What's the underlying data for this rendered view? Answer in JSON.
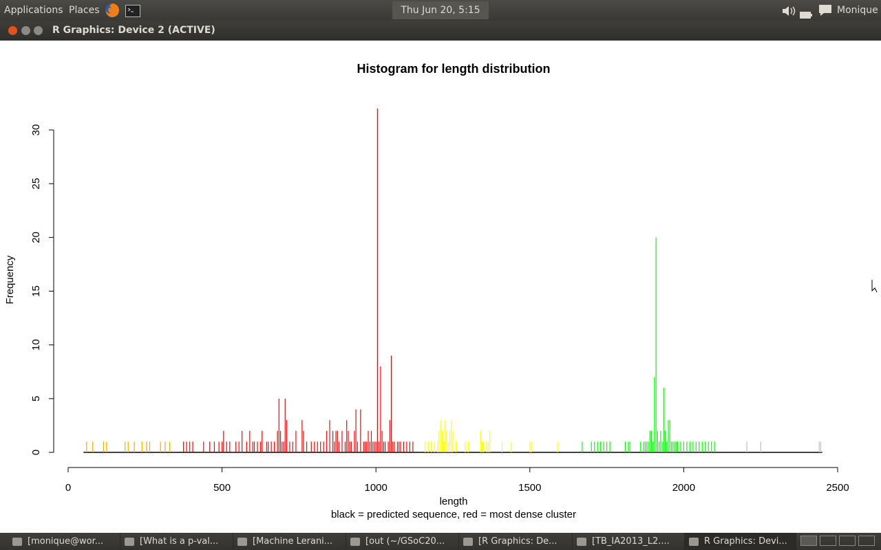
{
  "top_panel": {
    "applications_label": "Applications",
    "places_label": "Places",
    "clock": "Thu Jun 20,  5:15 PM",
    "user_name": "Monique"
  },
  "window": {
    "title": "R Graphics: Device 2 (ACTIVE)"
  },
  "taskbar": {
    "items": [
      {
        "label": "[monique@wor...",
        "icon": "terminal-icon"
      },
      {
        "label": "[What is a p-val...",
        "icon": "firefox-icon"
      },
      {
        "label": "[Machine Lerani...",
        "icon": "folder-icon"
      },
      {
        "label": "[out (~/GSoC20...",
        "icon": "text-editor-icon"
      },
      {
        "label": "[R Graphics: De...",
        "icon": "window-icon"
      },
      {
        "label": "[TB_IA2013_L2....",
        "icon": "document-icon"
      },
      {
        "label": "R Graphics: Devi...",
        "icon": "window-icon",
        "active": true
      }
    ]
  },
  "colors": {
    "orange": "#FFA500",
    "red": "#FF0000",
    "yellow": "#FFFF00",
    "green": "#00FF00",
    "gray": "#BEBEBE",
    "black": "#000000"
  },
  "chart_data": {
    "type": "bar",
    "title": "Histogram for length distribution",
    "xlabel": "length",
    "ylabel": "Frequency",
    "subtitle": "black = predicted sequence, red = most dense cluster",
    "xlim": [
      0,
      2500
    ],
    "ylim": [
      0,
      30
    ],
    "x_ticks": [
      "0",
      "500",
      "1000",
      "1500",
      "2000",
      "2500"
    ],
    "y_ticks": [
      "0",
      "5",
      "10",
      "15",
      "20",
      "25",
      "30"
    ],
    "baseline_range": [
      50,
      2450
    ],
    "series": [
      {
        "color": "orange",
        "x": [
          60,
          80,
          115,
          125,
          185,
          195,
          215,
          240,
          255,
          265,
          300,
          315,
          330
        ],
        "values": [
          1,
          1,
          1,
          1,
          1,
          1,
          1,
          1,
          1,
          1,
          1,
          1,
          1
        ]
      },
      {
        "color": "red",
        "x": [
          375,
          385,
          395,
          405,
          440,
          460,
          475,
          490,
          500,
          505,
          515,
          525,
          545,
          555,
          565,
          580,
          590,
          600,
          605,
          615,
          625,
          630,
          645,
          650,
          660,
          670,
          680,
          685,
          690,
          695,
          700,
          705,
          710,
          720,
          730,
          740,
          760,
          765,
          775,
          790,
          800,
          810,
          820,
          830,
          840,
          850,
          860,
          865,
          870,
          875,
          880,
          890,
          900,
          905,
          910,
          915,
          920,
          930,
          935,
          940,
          950,
          960,
          965,
          970,
          975,
          980,
          985,
          990,
          995,
          1000,
          1005,
          1010,
          1015,
          1020,
          1025,
          1030,
          1040,
          1045,
          1050,
          1055,
          1060,
          1070,
          1075,
          1080,
          1090,
          1100,
          1110,
          1120
        ],
        "values": [
          1,
          1,
          1,
          1,
          1,
          1,
          1,
          1,
          1,
          2,
          1,
          1,
          1,
          1,
          2,
          1,
          2,
          1,
          1,
          1,
          1,
          2,
          1,
          1,
          1,
          1,
          2,
          5,
          2,
          1,
          1,
          5,
          3,
          1,
          1,
          2,
          3,
          2,
          1,
          1,
          1,
          1,
          1,
          1,
          2,
          3,
          2,
          1,
          2,
          2,
          1,
          2,
          1,
          3,
          2,
          1,
          1,
          2,
          4,
          1,
          4,
          1,
          1,
          1,
          2,
          1,
          2,
          1,
          1,
          1,
          32,
          1,
          8,
          2,
          1,
          1,
          1,
          3,
          9,
          1,
          1,
          1,
          1,
          1,
          1,
          1,
          1,
          1
        ]
      },
      {
        "color": "yellow",
        "x": [
          1160,
          1170,
          1180,
          1190,
          1200,
          1205,
          1210,
          1215,
          1220,
          1225,
          1230,
          1235,
          1240,
          1245,
          1250,
          1260,
          1290,
          1300,
          1340,
          1345,
          1350,
          1360,
          1365,
          1370,
          1410,
          1440,
          1500,
          1505,
          1590
        ],
        "values": [
          1,
          1,
          1,
          1,
          1,
          2,
          3,
          2,
          1,
          3,
          2,
          1,
          2,
          3,
          2,
          1,
          1,
          1,
          2,
          1,
          1,
          1,
          1,
          2,
          1,
          1,
          1,
          1,
          1
        ]
      },
      {
        "color": "green",
        "x": [
          1670,
          1700,
          1710,
          1720,
          1730,
          1740,
          1750,
          1760,
          1810,
          1820,
          1825,
          1860,
          1870,
          1875,
          1880,
          1885,
          1890,
          1895,
          1900,
          1905,
          1910,
          1915,
          1920,
          1925,
          1930,
          1935,
          1940,
          1945,
          1950,
          1955,
          1960,
          1965,
          1970,
          1975,
          1980,
          1990,
          2000,
          2010,
          2020,
          2030,
          2040,
          2050,
          2060,
          2070,
          2080,
          2090,
          2100
        ],
        "values": [
          1,
          1,
          1,
          1,
          1,
          1,
          1,
          1,
          1,
          1,
          1,
          1,
          1,
          1,
          1,
          1,
          2,
          2,
          1,
          7,
          20,
          2,
          1,
          2,
          1,
          6,
          2,
          1,
          3,
          3,
          1,
          1,
          1,
          1,
          1,
          1,
          1,
          1,
          1,
          1,
          1,
          1,
          1,
          1,
          1,
          1,
          1
        ]
      },
      {
        "color": "gray",
        "x": [
          2205,
          2250,
          2440,
          2445
        ],
        "values": [
          1,
          1,
          1,
          1
        ]
      },
      {
        "color": "black",
        "x": [
          1000
        ],
        "values": [
          0
        ]
      }
    ],
    "grid": false,
    "legend": "none"
  }
}
